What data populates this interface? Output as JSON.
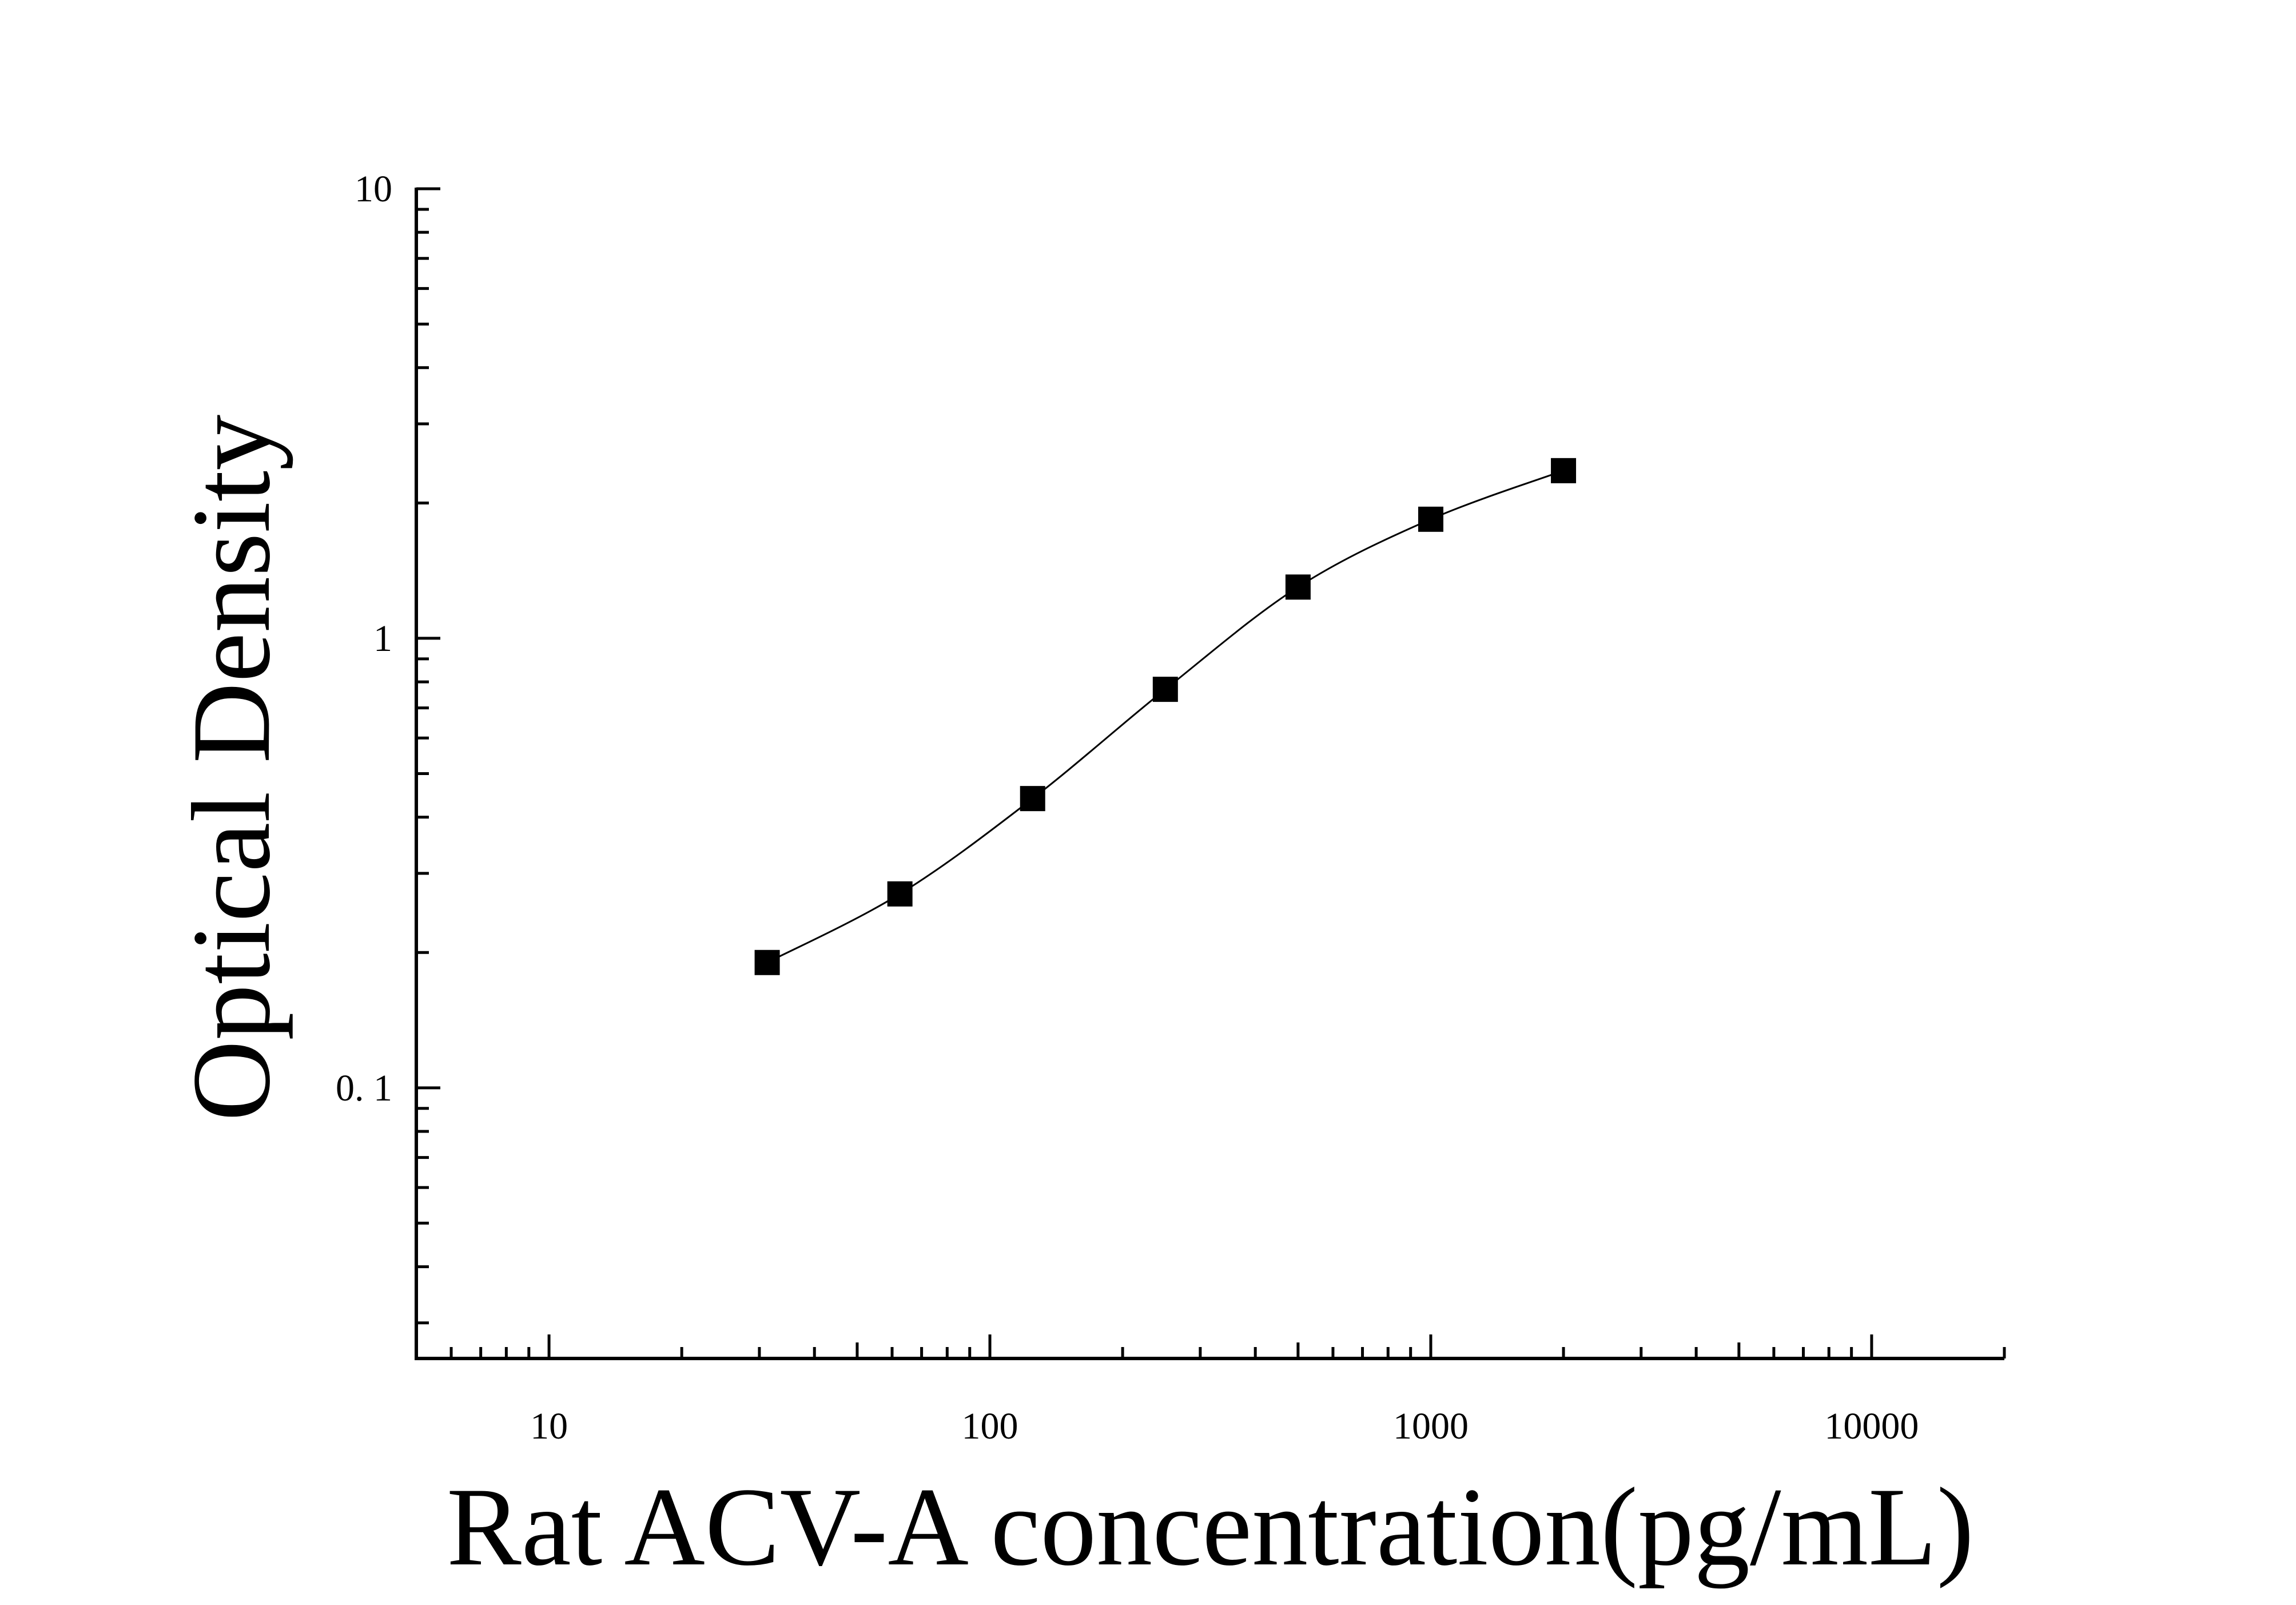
{
  "chart_data": {
    "type": "scatter",
    "title": "",
    "xlabel": "Rat ACV-A concentration(pg/mL)",
    "ylabel": "Optical Density",
    "x_scale": "log",
    "y_scale": "log",
    "xlim": [
      5,
      20000
    ],
    "ylim": [
      0.025,
      10
    ],
    "x_ticks": [
      {
        "value": 10,
        "label": "10"
      },
      {
        "value": 100,
        "label": "100"
      },
      {
        "value": 1000,
        "label": "1000"
      },
      {
        "value": 10000,
        "label": "10000"
      }
    ],
    "y_ticks": [
      {
        "value": 0.1,
        "label": "0. 1"
      },
      {
        "value": 1,
        "label": "1"
      },
      {
        "value": 10,
        "label": "10"
      }
    ],
    "series": [
      {
        "x": [
          31.25,
          62.5,
          125,
          250,
          500,
          1000,
          2000
        ],
        "y": [
          0.19,
          0.27,
          0.44,
          0.77,
          1.3,
          1.84,
          2.36
        ],
        "marker": "square",
        "color": "#000000",
        "fit_line": true
      }
    ],
    "grid": false,
    "legend": "none"
  }
}
